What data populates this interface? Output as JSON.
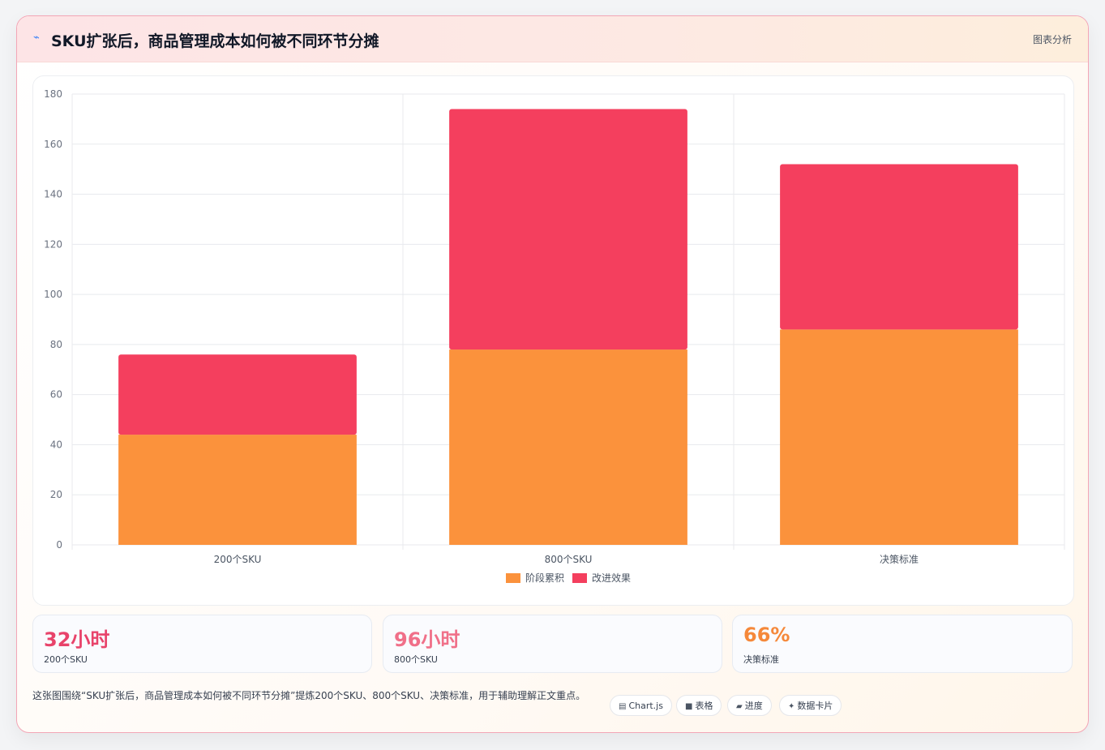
{
  "header": {
    "icon": "trend-icon",
    "title": "SKU扩张后，商品管理成本如何被不同环节分摊",
    "analysis_label": "图表分析"
  },
  "chart_data": {
    "type": "bar",
    "stacked": true,
    "categories": [
      "200个SKU",
      "800个SKU",
      "决策标准"
    ],
    "series": [
      {
        "name": "阶段累积",
        "values": [
          44,
          78,
          86
        ],
        "color": "#fb923c"
      },
      {
        "name": "改进效果",
        "values": [
          32,
          96,
          66
        ],
        "color": "#f43f5e"
      }
    ],
    "ylim": [
      0,
      180
    ],
    "yticks": [
      0,
      20,
      40,
      60,
      80,
      100,
      120,
      140,
      160,
      180
    ],
    "grid": true,
    "legend": "bottom",
    "title": "",
    "xlabel": "",
    "ylabel": ""
  },
  "stats": [
    {
      "value": "32小时",
      "label": "200个SKU",
      "color": "#e8436a"
    },
    {
      "value": "96小时",
      "label": "800个SKU",
      "color": "#f07089"
    },
    {
      "value": "66%",
      "label": "决策标准",
      "color": "#f5883a"
    }
  ],
  "footer": {
    "description": "这张图围绕“SKU扩张后，商品管理成本如何被不同环节分摊”提炼200个SKU、800个SKU、决策标准，用于辅助理解正文重点。",
    "chips": [
      {
        "icon": "chart-icon",
        "glyph": "▤",
        "label": "Chart.js"
      },
      {
        "icon": "table-icon",
        "glyph": "■",
        "label": "表格"
      },
      {
        "icon": "progress-icon",
        "glyph": "▰",
        "label": "进度"
      },
      {
        "icon": "sparkle-icon",
        "glyph": "✦",
        "label": "数据卡片"
      }
    ]
  }
}
